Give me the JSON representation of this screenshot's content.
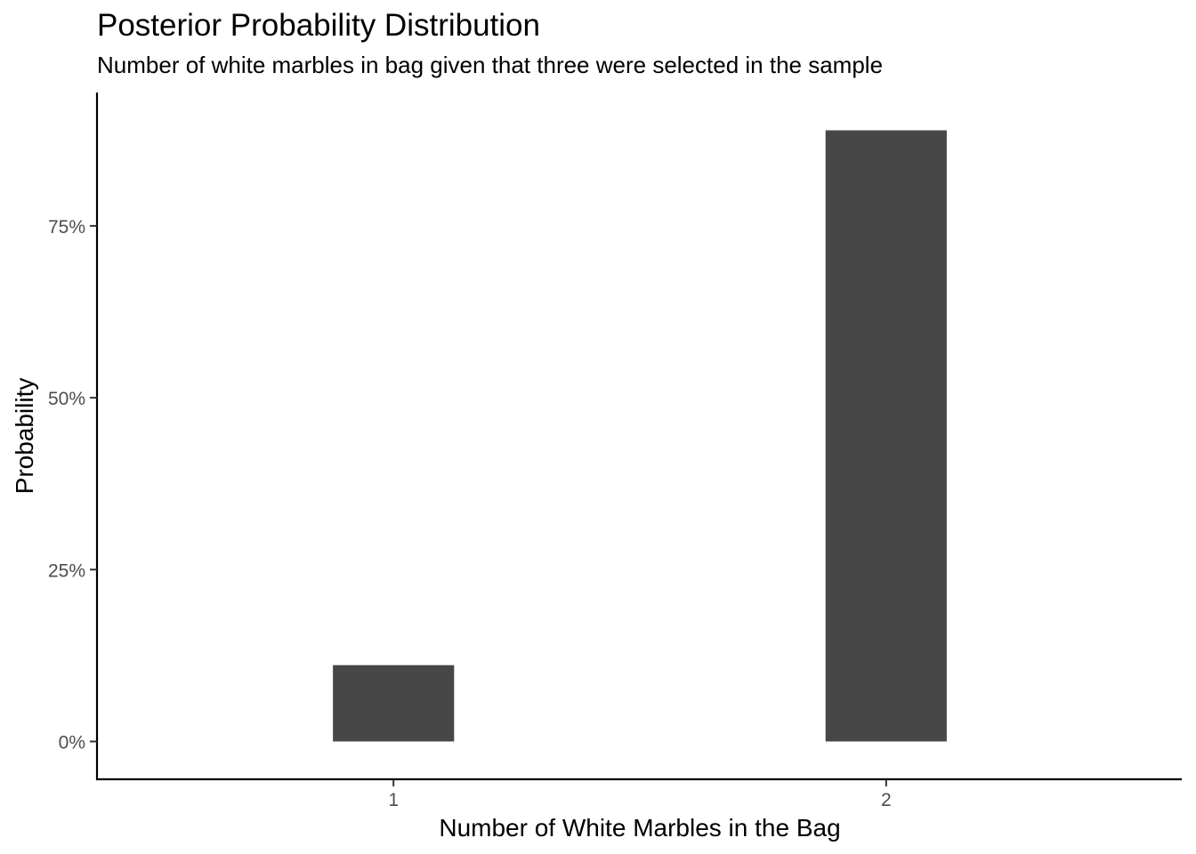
{
  "chart_data": {
    "type": "bar",
    "title": "Posterior Probability Distribution",
    "subtitle": "Number of white marbles in bag given that three were selected in the sample",
    "xlabel": "Number of White Marbles in the Bag",
    "ylabel": "Probability",
    "categories": [
      "1",
      "2"
    ],
    "values": [
      0.111,
      0.889
    ],
    "ylim": [
      -0.055,
      0.944
    ],
    "yticks": [
      0,
      0.25,
      0.5,
      0.75
    ],
    "ytick_labels": [
      "0%",
      "25%",
      "50%",
      "75%"
    ],
    "bar_color": "#474747",
    "grid": false,
    "legend": "none"
  }
}
